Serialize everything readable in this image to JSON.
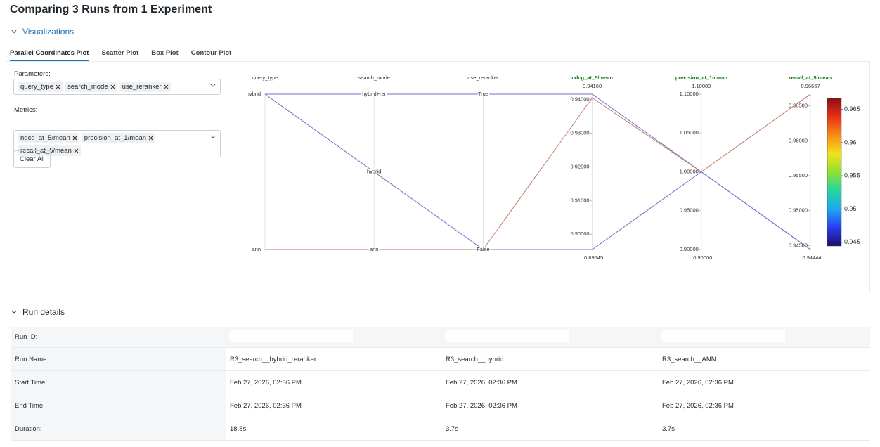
{
  "header": {
    "title": "Comparing 3 Runs from 1 Experiment"
  },
  "visualizations": {
    "title": "Visualizations",
    "tabs": [
      "Parallel Coordinates Plot",
      "Scatter Plot",
      "Box Plot",
      "Contour Plot"
    ],
    "active_tab": 0,
    "parameters_label": "Parameters:",
    "parameters": [
      "query_type",
      "search_mode",
      "use_reranker"
    ],
    "metrics_label": "Metrics:",
    "metrics": [
      "ndcg_at_5/mean",
      "precision_at_1/mean",
      "recall_at_5/mean"
    ],
    "clear_button": "Clear All"
  },
  "chart_data": {
    "type": "parallel_coordinates",
    "axes": [
      {
        "label": "query_type",
        "kind": "category",
        "categories": [
          "ann",
          "hybrid"
        ]
      },
      {
        "label": "search_mode",
        "kind": "category",
        "categories": [
          "ann",
          "hybrid",
          "hybrid+rer"
        ]
      },
      {
        "label": "use_reranker",
        "kind": "category",
        "categories": [
          "False",
          "True"
        ]
      },
      {
        "label": "ndcg_at_5/mean",
        "kind": "metric",
        "ylim": [
          {
            "value": 0.89545,
            "label": "0.89545"
          },
          {
            "value": 0.9416,
            "label": "0.94160"
          }
        ],
        "yticks": [
          {
            "value": 0.9,
            "label": "0.90000"
          },
          {
            "value": 0.91,
            "label": "0.91000"
          },
          {
            "value": 0.92,
            "label": "0.92000"
          },
          {
            "value": 0.93,
            "label": "0.93000"
          },
          {
            "value": 0.94,
            "label": "0.94000"
          }
        ]
      },
      {
        "label": "precision_at_1/mean",
        "kind": "metric",
        "ylim": [
          {
            "value": 0.9,
            "label": "0.90000"
          },
          {
            "value": 1.1,
            "label": "1.10000"
          }
        ],
        "yticks": [
          {
            "value": 0.9,
            "label": "0.90000"
          },
          {
            "value": 0.95,
            "label": "0.95000"
          },
          {
            "value": 1.0,
            "label": "1.00000"
          },
          {
            "value": 1.05,
            "label": "1.05000"
          },
          {
            "value": 1.1,
            "label": "1.10000"
          }
        ]
      },
      {
        "label": "recall_at_5/mean",
        "kind": "metric",
        "ylim": [
          {
            "value": 0.94444,
            "label": "0.94444"
          },
          {
            "value": 0.96667,
            "label": "0.96667"
          }
        ],
        "yticks": [
          {
            "value": 0.945,
            "label": "0.94500"
          },
          {
            "value": 0.95,
            "label": "0.95000"
          },
          {
            "value": 0.955,
            "label": "0.95500"
          },
          {
            "value": 0.96,
            "label": "0.96000"
          },
          {
            "value": 0.965,
            "label": "0.96500"
          }
        ]
      }
    ],
    "runs": [
      {
        "color": "#6f6fc8",
        "values": [
          "hybrid",
          "hybrid+rer",
          "True",
          0.9416,
          1.0,
          0.94444
        ]
      },
      {
        "color": "#6f6fc8",
        "values": [
          "hybrid",
          "hybrid",
          "False",
          0.89545,
          1.0,
          0.94444
        ]
      },
      {
        "color": "#c0796a",
        "values": [
          "ann",
          "ann",
          "False",
          0.9405,
          1.0,
          0.96667
        ]
      }
    ],
    "colorbar": {
      "colorscale": [
        "#1a0f6e",
        "#2a3cf0",
        "#1fa8f0",
        "#25d6a0",
        "#8ee030",
        "#f2e21c",
        "#f98d16",
        "#e8301a",
        "#8a1010"
      ],
      "ticks": [
        0.945,
        0.95,
        0.955,
        0.96,
        0.965
      ]
    }
  },
  "run_details": {
    "title": "Run details",
    "rows": [
      {
        "label": "Run ID:"
      },
      {
        "label": "Run Name:",
        "values": [
          "R3_search__hybrid_reranker",
          "R3_search__hybrid",
          "R3_search__ANN"
        ]
      },
      {
        "label": "Start Time:",
        "values": [
          "Feb 27, 2026, 02:36 PM",
          "Feb 27, 2026, 02:36 PM",
          "Feb 27, 2026, 02:36 PM"
        ]
      },
      {
        "label": "End Time:",
        "values": [
          "Feb 27, 2026, 02:36 PM",
          "Feb 27, 2026, 02:36 PM",
          "Feb 27, 2026, 02:36 PM"
        ]
      },
      {
        "label": "Duration:",
        "values": [
          "18.8s",
          "3.7s",
          "3.7s"
        ]
      }
    ]
  }
}
